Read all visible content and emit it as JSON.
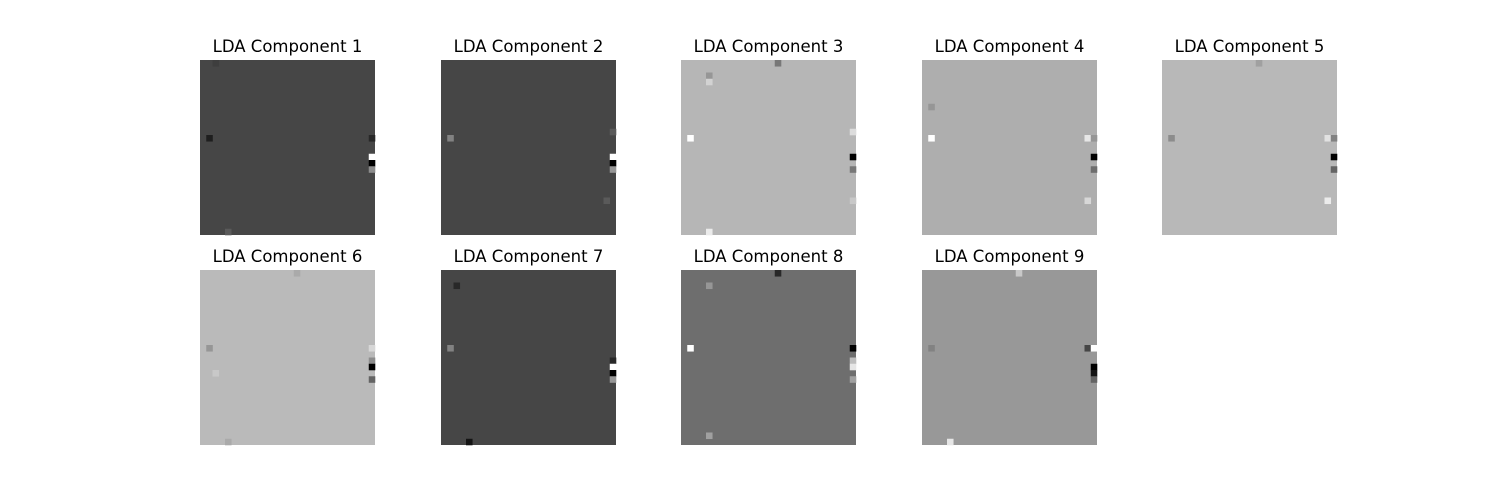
{
  "chart_data": {
    "type": "heatmap",
    "layout": "2 rows x 5 columns grid of grayscale image panels",
    "colormap": "gray",
    "axes_visible": false,
    "grid": false,
    "image_resolution": [
      28,
      28
    ],
    "panels": [
      {
        "title": "LDA Component 1",
        "background_gray": 70,
        "features": [
          {
            "row": 0,
            "col": 2,
            "gray": 62
          },
          {
            "row": 12,
            "col": 1,
            "gray": 30
          },
          {
            "row": 12,
            "col": 27,
            "gray": 40
          },
          {
            "row": 15,
            "col": 27,
            "gray": 255
          },
          {
            "row": 16,
            "col": 27,
            "gray": 0
          },
          {
            "row": 17,
            "col": 27,
            "gray": 140
          },
          {
            "row": 27,
            "col": 4,
            "gray": 90
          }
        ]
      },
      {
        "title": "LDA Component 2",
        "background_gray": 70,
        "features": [
          {
            "row": 12,
            "col": 1,
            "gray": 130
          },
          {
            "row": 11,
            "col": 27,
            "gray": 90
          },
          {
            "row": 15,
            "col": 27,
            "gray": 255
          },
          {
            "row": 16,
            "col": 27,
            "gray": 0
          },
          {
            "row": 17,
            "col": 27,
            "gray": 150
          },
          {
            "row": 22,
            "col": 26,
            "gray": 90
          }
        ]
      },
      {
        "title": "LDA Component 3",
        "background_gray": 182,
        "features": [
          {
            "row": 0,
            "col": 15,
            "gray": 120
          },
          {
            "row": 2,
            "col": 4,
            "gray": 150
          },
          {
            "row": 3,
            "col": 4,
            "gray": 210
          },
          {
            "row": 12,
            "col": 1,
            "gray": 255
          },
          {
            "row": 11,
            "col": 27,
            "gray": 220
          },
          {
            "row": 15,
            "col": 27,
            "gray": 0
          },
          {
            "row": 17,
            "col": 27,
            "gray": 120
          },
          {
            "row": 27,
            "col": 4,
            "gray": 235
          },
          {
            "row": 22,
            "col": 27,
            "gray": 200
          }
        ]
      },
      {
        "title": "LDA Component 4",
        "background_gray": 174,
        "features": [
          {
            "row": 7,
            "col": 1,
            "gray": 150
          },
          {
            "row": 12,
            "col": 1,
            "gray": 255
          },
          {
            "row": 12,
            "col": 26,
            "gray": 230
          },
          {
            "row": 12,
            "col": 27,
            "gray": 150
          },
          {
            "row": 15,
            "col": 27,
            "gray": 0
          },
          {
            "row": 17,
            "col": 27,
            "gray": 110
          },
          {
            "row": 22,
            "col": 26,
            "gray": 215
          }
        ]
      },
      {
        "title": "LDA Component 5",
        "background_gray": 184,
        "features": [
          {
            "row": 0,
            "col": 15,
            "gray": 160
          },
          {
            "row": 12,
            "col": 1,
            "gray": 140
          },
          {
            "row": 12,
            "col": 26,
            "gray": 225
          },
          {
            "row": 12,
            "col": 27,
            "gray": 130
          },
          {
            "row": 15,
            "col": 27,
            "gray": 0
          },
          {
            "row": 17,
            "col": 27,
            "gray": 100
          },
          {
            "row": 22,
            "col": 26,
            "gray": 235
          }
        ]
      },
      {
        "title": "LDA Component 6",
        "background_gray": 186,
        "features": [
          {
            "row": 0,
            "col": 15,
            "gray": 170
          },
          {
            "row": 12,
            "col": 1,
            "gray": 150
          },
          {
            "row": 12,
            "col": 27,
            "gray": 215
          },
          {
            "row": 14,
            "col": 27,
            "gray": 140
          },
          {
            "row": 15,
            "col": 27,
            "gray": 0
          },
          {
            "row": 17,
            "col": 27,
            "gray": 100
          },
          {
            "row": 16,
            "col": 2,
            "gray": 200
          },
          {
            "row": 27,
            "col": 4,
            "gray": 170
          }
        ]
      },
      {
        "title": "LDA Component 7",
        "background_gray": 70,
        "features": [
          {
            "row": 2,
            "col": 2,
            "gray": 40
          },
          {
            "row": 12,
            "col": 1,
            "gray": 130
          },
          {
            "row": 14,
            "col": 27,
            "gray": 40
          },
          {
            "row": 15,
            "col": 27,
            "gray": 255
          },
          {
            "row": 16,
            "col": 27,
            "gray": 0
          },
          {
            "row": 17,
            "col": 27,
            "gray": 150
          },
          {
            "row": 27,
            "col": 4,
            "gray": 20
          }
        ]
      },
      {
        "title": "LDA Component 8",
        "background_gray": 110,
        "features": [
          {
            "row": 0,
            "col": 15,
            "gray": 40
          },
          {
            "row": 2,
            "col": 4,
            "gray": 150
          },
          {
            "row": 12,
            "col": 1,
            "gray": 255
          },
          {
            "row": 12,
            "col": 27,
            "gray": 0
          },
          {
            "row": 14,
            "col": 27,
            "gray": 190
          },
          {
            "row": 15,
            "col": 27,
            "gray": 230
          },
          {
            "row": 17,
            "col": 27,
            "gray": 160
          },
          {
            "row": 26,
            "col": 4,
            "gray": 160
          }
        ]
      },
      {
        "title": "LDA Component 9",
        "background_gray": 152,
        "features": [
          {
            "row": 0,
            "col": 15,
            "gray": 200
          },
          {
            "row": 12,
            "col": 1,
            "gray": 130
          },
          {
            "row": 12,
            "col": 26,
            "gray": 70
          },
          {
            "row": 12,
            "col": 27,
            "gray": 255
          },
          {
            "row": 15,
            "col": 27,
            "gray": 0
          },
          {
            "row": 16,
            "col": 27,
            "gray": 20
          },
          {
            "row": 17,
            "col": 27,
            "gray": 100
          },
          {
            "row": 27,
            "col": 4,
            "gray": 230
          }
        ]
      }
    ]
  }
}
